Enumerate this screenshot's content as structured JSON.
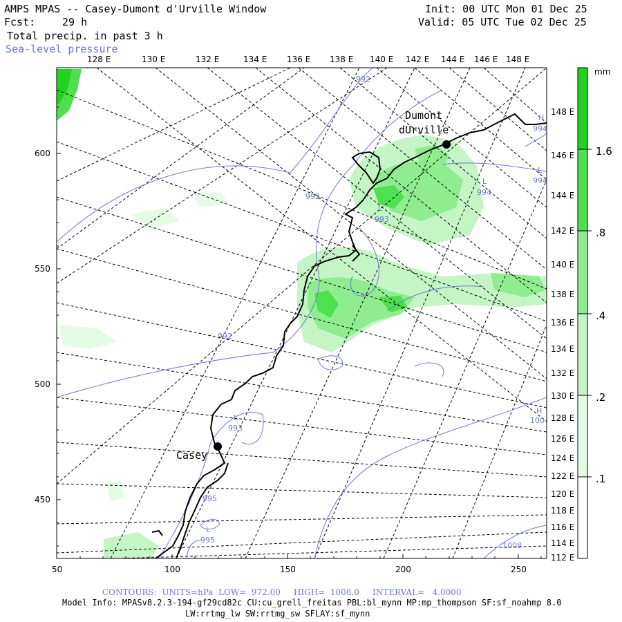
{
  "header": {
    "title": "AMPS MPAS -- Casey-Dumont d'Urville Window",
    "fcst_label": "Fcst:",
    "fcst_value": "29 h",
    "field": "Total precip. in past 3 h",
    "overlay": "Sea-level pressure",
    "init": "Init: 00 UTC Mon 01 Dec 25",
    "valid": "Valid: 05 UTC Tue 02 Dec 25"
  },
  "map": {
    "top_lon_labels": [
      "128 E",
      "130 E",
      "132 E",
      "134 E",
      "136 E",
      "138 E",
      "140 E",
      "142 E",
      "144 E",
      "146 E",
      "148 E"
    ],
    "right_lon_labels": [
      "148 E",
      "146 E",
      "144 E",
      "142 E",
      "140 E",
      "138 E",
      "136 E",
      "134 E",
      "132 E",
      "130 E",
      "128 E",
      "126 E",
      "124 E",
      "122 E",
      "120 E",
      "118 E",
      "116 E",
      "114 E",
      "112 E"
    ],
    "left_y_labels": [
      "600",
      "550",
      "500",
      "450"
    ],
    "bottom_x_labels": [
      "50",
      "100",
      "150",
      "200",
      "250"
    ],
    "cities": [
      {
        "name": "Casey",
        "label": "Casey"
      },
      {
        "name": "Dumont",
        "label_line1": "Dumont",
        "label_line2": "dUrville"
      }
    ],
    "pressure_labels": [
      {
        "text": "992"
      },
      {
        "text": "992"
      },
      {
        "text": "992"
      },
      {
        "text": "L"
      },
      {
        "text": "993"
      },
      {
        "text": "L"
      },
      {
        "text": "994"
      },
      {
        "text": "L"
      },
      {
        "text": "994"
      },
      {
        "text": "H"
      },
      {
        "text": "994"
      },
      {
        "text": "L"
      },
      {
        "text": "993"
      },
      {
        "text": "995"
      },
      {
        "text": "L"
      },
      {
        "text": "995"
      },
      {
        "text": "H"
      },
      {
        "text": "100"
      },
      {
        "text": "1008"
      }
    ]
  },
  "colorbar": {
    "unit": "mm",
    "labels": [
      "1.6",
      ".8",
      ".4",
      ".2",
      ".1"
    ],
    "colors": [
      "#1fd31f",
      "#4fe04f",
      "#8fec8f",
      "#c5f5c5",
      "#e6fbe6"
    ]
  },
  "footer": {
    "contours": "CONTOURS:  UNITS=hPa  LOW=  972.00     HIGH=  1008.0     INTERVAL=   4.0000",
    "model_info": "Model Info: MPASv8.2.3-194-gf29cd82c CU:cu_grell_freitas PBL:bl_mynn MP:mp_thompson SF:sf_noahmp 8.0",
    "model_info2": "LW:rrtmg_lw SW:rrtmg_sw SFLAY:sf_mynn"
  }
}
